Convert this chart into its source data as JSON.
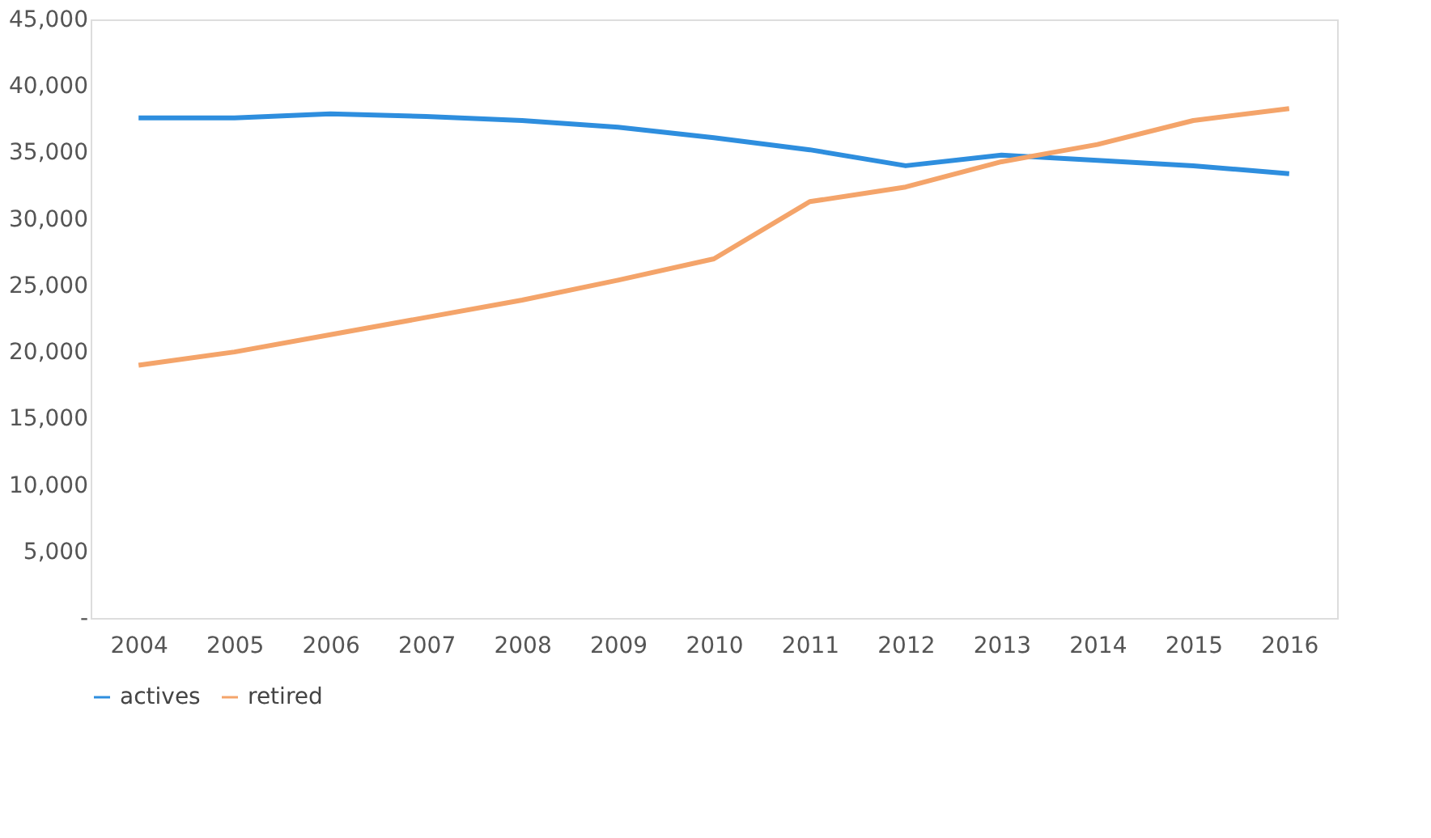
{
  "chart_data": {
    "type": "line",
    "categories": [
      "2004",
      "2005",
      "2006",
      "2007",
      "2008",
      "2009",
      "2010",
      "2011",
      "2012",
      "2013",
      "2014",
      "2015",
      "2016"
    ],
    "series": [
      {
        "name": "actives",
        "color": "#2e8ede",
        "values": [
          37600,
          37600,
          37900,
          37700,
          37400,
          36900,
          36100,
          35200,
          34000,
          34800,
          34400,
          34000,
          33400
        ]
      },
      {
        "name": "retired",
        "color": "#f4a46a",
        "values": [
          19000,
          20000,
          21300,
          22600,
          23900,
          25400,
          27000,
          31300,
          32400,
          34300,
          35600,
          37400,
          38300
        ]
      }
    ],
    "ylim": [
      0,
      45000
    ],
    "yticks": [
      {
        "value": 0,
        "label": "-"
      },
      {
        "value": 5000,
        "label": "5,000"
      },
      {
        "value": 10000,
        "label": "10,000"
      },
      {
        "value": 15000,
        "label": "15,000"
      },
      {
        "value": 20000,
        "label": "20,000"
      },
      {
        "value": 25000,
        "label": "25,000"
      },
      {
        "value": 30000,
        "label": "30,000"
      },
      {
        "value": 35000,
        "label": "35,000"
      },
      {
        "value": 40000,
        "label": "40,000"
      },
      {
        "value": 45000,
        "label": "45,000"
      }
    ],
    "grid": false,
    "legend": "bottom",
    "marker": "none",
    "line_style": "solid"
  }
}
